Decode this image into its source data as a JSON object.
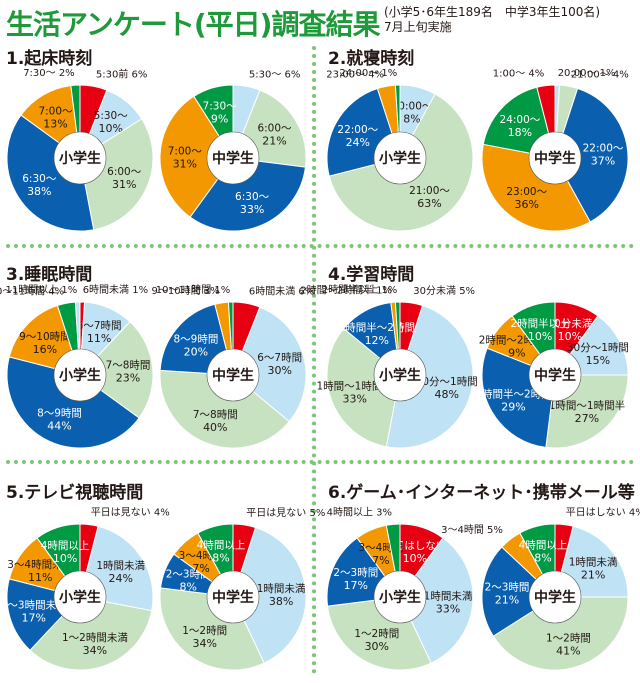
{
  "header": {
    "title": "生活アンケート(平日)調査結果",
    "note_line1": "(小学5･6年生189名　中学3年生100名)",
    "note_line2": "7月上旬実施"
  },
  "colors": {
    "red": "#e60012",
    "lightblue": "#bfe3f5",
    "lightgreen": "#c6e2c0",
    "blue": "#0a5fae",
    "orange": "#f39800",
    "green": "#009944",
    "title_green": "#1f9a3a"
  },
  "center_labels": {
    "elementary": "小学生",
    "junior": "中学生"
  },
  "sections": [
    {
      "title": "1.起床時刻"
    },
    {
      "title": "2.就寝時刻"
    },
    {
      "title": "3.睡眠時間"
    },
    {
      "title": "4.学習時間"
    },
    {
      "title": "5.テレビ視聴時間"
    },
    {
      "title": "6.ゲーム･インターネット･携帯メール等"
    }
  ],
  "chart_data": [
    {
      "type": "pie",
      "title": "1.起床時刻",
      "group": "小学生",
      "slices": [
        {
          "label": "5:30前",
          "value": 6,
          "color": "red"
        },
        {
          "label": "5:30～",
          "value": 10,
          "color": "lightblue"
        },
        {
          "label": "6:00～",
          "value": 31,
          "color": "lightgreen"
        },
        {
          "label": "6:30～",
          "value": 38,
          "color": "blue"
        },
        {
          "label": "7:00～",
          "value": 13,
          "color": "orange"
        },
        {
          "label": "7:30～",
          "value": 2,
          "color": "green"
        }
      ]
    },
    {
      "type": "pie",
      "title": "1.起床時刻",
      "group": "中学生",
      "slices": [
        {
          "label": "5:30～",
          "value": 6,
          "color": "lightblue"
        },
        {
          "label": "6:00～",
          "value": 21,
          "color": "lightgreen"
        },
        {
          "label": "6:30～",
          "value": 33,
          "color": "blue"
        },
        {
          "label": "7:00～",
          "value": 31,
          "color": "orange"
        },
        {
          "label": "7:30～",
          "value": 9,
          "color": "green"
        }
      ]
    },
    {
      "type": "pie",
      "title": "2.就寝時刻",
      "group": "小学生",
      "slices": [
        {
          "label": "20:00～",
          "value": 8,
          "color": "lightblue"
        },
        {
          "label": "21:00～",
          "value": 63,
          "color": "lightgreen"
        },
        {
          "label": "22:00～",
          "value": 24,
          "color": "blue"
        },
        {
          "label": "23:00～",
          "value": 4,
          "color": "orange"
        },
        {
          "label": "24:00～",
          "value": 1,
          "color": "green"
        }
      ]
    },
    {
      "type": "pie",
      "title": "2.就寝時刻",
      "group": "中学生",
      "slices": [
        {
          "label": "20:00～",
          "value": 1,
          "color": "lightblue"
        },
        {
          "label": "21:00～",
          "value": 4,
          "color": "lightgreen"
        },
        {
          "label": "22:00～",
          "value": 37,
          "color": "blue"
        },
        {
          "label": "23:00～",
          "value": 36,
          "color": "orange"
        },
        {
          "label": "24:00～",
          "value": 18,
          "color": "green"
        },
        {
          "label": "1:00～",
          "value": 4,
          "color": "red"
        }
      ]
    },
    {
      "type": "pie",
      "title": "3.睡眠時間",
      "group": "小学生",
      "slices": [
        {
          "label": "6時間未満",
          "value": 1,
          "color": "red"
        },
        {
          "label": "6～7時間",
          "value": 11,
          "color": "lightblue"
        },
        {
          "label": "7～8時間",
          "value": 23,
          "color": "lightgreen"
        },
        {
          "label": "8～9時間",
          "value": 44,
          "color": "blue"
        },
        {
          "label": "9～10時間",
          "value": 16,
          "color": "orange"
        },
        {
          "label": "10～11時間",
          "value": 4,
          "color": "green"
        },
        {
          "label": "11時間以上",
          "value": 1,
          "color": "lightblue"
        }
      ]
    },
    {
      "type": "pie",
      "title": "3.睡眠時間",
      "group": "中学生",
      "slices": [
        {
          "label": "6時間未満",
          "value": 6,
          "color": "red"
        },
        {
          "label": "6～7時間",
          "value": 30,
          "color": "lightblue"
        },
        {
          "label": "7～8時間",
          "value": 40,
          "color": "lightgreen"
        },
        {
          "label": "8～9時間",
          "value": 20,
          "color": "blue"
        },
        {
          "label": "9～10時間",
          "value": 3,
          "color": "orange"
        },
        {
          "label": "10～11時間",
          "value": 1,
          "color": "green"
        }
      ]
    },
    {
      "type": "pie",
      "title": "4.学習時間",
      "group": "小学生",
      "slices": [
        {
          "label": "30分未満",
          "value": 5,
          "color": "red"
        },
        {
          "label": "30分～1時間",
          "value": 48,
          "color": "lightblue"
        },
        {
          "label": "1時間～1時間半",
          "value": 33,
          "color": "lightgreen"
        },
        {
          "label": "1時間半～2時間",
          "value": 12,
          "color": "blue"
        },
        {
          "label": "2時間～2時間半",
          "value": 1,
          "color": "orange"
        },
        {
          "label": "2時間半以上",
          "value": 1,
          "color": "green"
        }
      ]
    },
    {
      "type": "pie",
      "title": "4.学習時間",
      "group": "中学生",
      "slices": [
        {
          "label": "30分未満",
          "value": 10,
          "color": "red"
        },
        {
          "label": "30分～1時間",
          "value": 15,
          "color": "lightblue"
        },
        {
          "label": "1時間～1時間半",
          "value": 27,
          "color": "lightgreen"
        },
        {
          "label": "1時間半～2時間",
          "value": 29,
          "color": "blue"
        },
        {
          "label": "2時間～2時間半",
          "value": 9,
          "color": "orange"
        },
        {
          "label": "2時間半以上",
          "value": 10,
          "color": "green"
        }
      ]
    },
    {
      "type": "pie",
      "title": "5.テレビ視聴時間",
      "group": "小学生",
      "slices": [
        {
          "label": "平日は見ない",
          "value": 4,
          "color": "red"
        },
        {
          "label": "1時間未満",
          "value": 24,
          "color": "lightblue"
        },
        {
          "label": "1～2時間未満",
          "value": 34,
          "color": "lightgreen"
        },
        {
          "label": "2～3時間未満",
          "value": 17,
          "color": "blue"
        },
        {
          "label": "3～4時間未満",
          "value": 11,
          "color": "orange"
        },
        {
          "label": "4時間以上",
          "value": 10,
          "color": "green"
        }
      ]
    },
    {
      "type": "pie",
      "title": "5.テレビ視聴時間",
      "group": "中学生",
      "slices": [
        {
          "label": "平日は見ない",
          "value": 5,
          "color": "red"
        },
        {
          "label": "1時間未満",
          "value": 38,
          "color": "lightblue"
        },
        {
          "label": "1～2時間",
          "value": 34,
          "color": "lightgreen"
        },
        {
          "label": "2～3時間",
          "value": 8,
          "color": "blue"
        },
        {
          "label": "3～4時間",
          "value": 7,
          "color": "orange"
        },
        {
          "label": "4時間以上",
          "value": 8,
          "color": "green"
        }
      ]
    },
    {
      "type": "pie",
      "title": "6.ゲーム･インターネット･携帯メール等",
      "group": "小学生",
      "slices": [
        {
          "label": "平日はしない",
          "value": 10,
          "color": "red"
        },
        {
          "label": "1時間未満",
          "value": 33,
          "color": "lightblue"
        },
        {
          "label": "1～2時間",
          "value": 30,
          "color": "lightgreen"
        },
        {
          "label": "2～3時間",
          "value": 17,
          "color": "blue"
        },
        {
          "label": "3～4時間",
          "value": 7,
          "color": "orange"
        },
        {
          "label": "4時間以上",
          "value": 3,
          "color": "green"
        }
      ]
    },
    {
      "type": "pie",
      "title": "6.ゲーム･インターネット･携帯メール等",
      "group": "中学生",
      "slices": [
        {
          "label": "平日はしない",
          "value": 4,
          "color": "red"
        },
        {
          "label": "1時間未満",
          "value": 21,
          "color": "lightblue"
        },
        {
          "label": "1～2時間",
          "value": 41,
          "color": "lightgreen"
        },
        {
          "label": "2～3時間",
          "value": 21,
          "color": "blue"
        },
        {
          "label": "3～4時間",
          "value": 5,
          "color": "orange"
        },
        {
          "label": "4時間以上",
          "value": 8,
          "color": "green"
        }
      ]
    }
  ]
}
